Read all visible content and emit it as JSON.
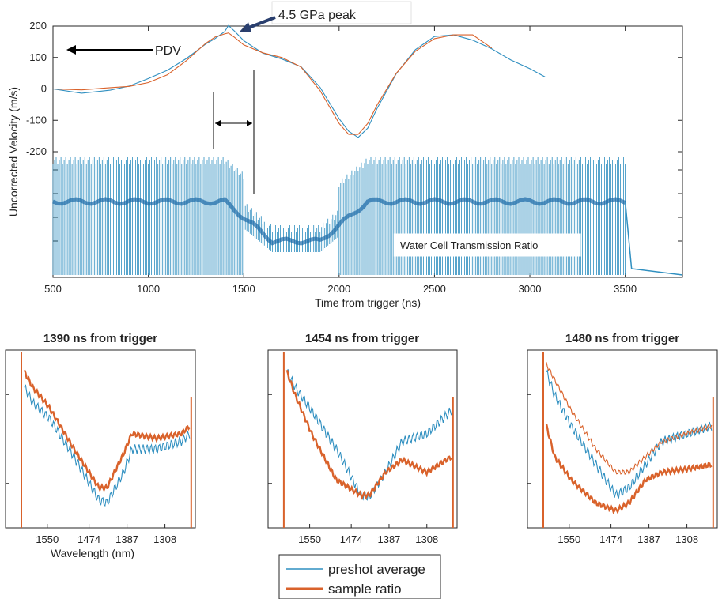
{
  "chart_data": [
    {
      "type": "line",
      "xlabel": "Time from trigger (ns)",
      "ylabel": "Uncorrected Velocity (m/s)",
      "xlim": [
        500,
        3800
      ],
      "xticks": [
        500,
        1000,
        1500,
        2000,
        2500,
        3000,
        3500
      ],
      "ylim": [
        -750,
        200
      ],
      "yticks": [
        200,
        100,
        0,
        -100,
        -200
      ],
      "grid": false,
      "annotations": {
        "peak": "4.5 GPa peak",
        "pdv": "PDV",
        "transmission": "Water Cell Transmission Ratio"
      },
      "series": [
        {
          "color": "#2f8fc0",
          "x": [
            500,
            650,
            800,
            900,
            1000,
            1100,
            1200,
            1300,
            1350,
            1400,
            1420,
            1450,
            1500,
            1600,
            1700,
            1800,
            1900,
            2000,
            2050,
            2100,
            2150,
            2200,
            2300,
            2400,
            2500,
            2600,
            2700,
            2800,
            2900,
            3000,
            3080
          ],
          "y": [
            0,
            -5,
            5,
            10,
            25,
            50,
            95,
            150,
            170,
            185,
            195,
            175,
            150,
            120,
            105,
            75,
            0,
            -105,
            -140,
            -150,
            -115,
            -55,
            45,
            115,
            160,
            175,
            165,
            135,
            90,
            55,
            30
          ]
        },
        {
          "color": "#d9622b",
          "x": [
            500,
            650,
            800,
            900,
            1000,
            1100,
            1200,
            1300,
            1350,
            1400,
            1420,
            1450,
            1500,
            1600,
            1700,
            1800,
            1900,
            2000,
            2050,
            2100,
            2150,
            2200,
            2300,
            2400,
            2500,
            2600,
            2700,
            2800
          ],
          "y": [
            0,
            -3,
            4,
            8,
            20,
            45,
            90,
            145,
            165,
            175,
            178,
            165,
            140,
            115,
            100,
            70,
            -5,
            -110,
            -145,
            -145,
            -110,
            -50,
            50,
            120,
            160,
            172,
            172,
            130
          ]
        }
      ]
    },
    {
      "type": "line",
      "title": "1390 ns from trigger",
      "xlabel": "Wavelength (nm)",
      "xticks": [
        "1550",
        "1474",
        "1387",
        "1308"
      ],
      "series": [
        {
          "name": "preshot average",
          "color": "#2f8fc0",
          "x": [
            0,
            0.05,
            0.15,
            0.3,
            0.45,
            0.5,
            0.6,
            0.65,
            0.8,
            0.95,
            1
          ],
          "y": [
            0.85,
            0.75,
            0.65,
            0.4,
            0.12,
            0.1,
            0.3,
            0.45,
            0.45,
            0.5,
            0.55
          ]
        },
        {
          "name": "sample ratio",
          "color": "#d9622b",
          "x": [
            0,
            0.05,
            0.15,
            0.3,
            0.45,
            0.5,
            0.6,
            0.65,
            0.8,
            0.95,
            1
          ],
          "y": [
            0.95,
            0.85,
            0.72,
            0.45,
            0.2,
            0.2,
            0.42,
            0.55,
            0.52,
            0.55,
            0.6
          ]
        }
      ]
    },
    {
      "type": "line",
      "title": "1454 ns from trigger",
      "xticks": [
        "1550",
        "1474",
        "1387",
        "1308"
      ],
      "series": [
        {
          "name": "preshot average",
          "color": "#2f8fc0",
          "x": [
            0,
            0.05,
            0.15,
            0.3,
            0.45,
            0.5,
            0.6,
            0.7,
            0.85,
            1
          ],
          "y": [
            0.95,
            0.85,
            0.7,
            0.45,
            0.15,
            0.14,
            0.3,
            0.5,
            0.55,
            0.7
          ]
        },
        {
          "name": "sample ratio",
          "color": "#d9622b",
          "x": [
            0,
            0.05,
            0.15,
            0.3,
            0.45,
            0.5,
            0.6,
            0.7,
            0.85,
            1
          ],
          "y": [
            0.95,
            0.8,
            0.55,
            0.25,
            0.15,
            0.15,
            0.3,
            0.38,
            0.3,
            0.4
          ]
        }
      ]
    },
    {
      "type": "line",
      "title": "1480 ns from trigger",
      "xticks": [
        "1550",
        "1474",
        "1387",
        "1308"
      ],
      "series": [
        {
          "name": "preshot average",
          "color": "#2f8fc0",
          "x": [
            0,
            0.05,
            0.15,
            0.3,
            0.42,
            0.5,
            0.6,
            0.7,
            0.85,
            1
          ],
          "y": [
            0.95,
            0.8,
            0.6,
            0.35,
            0.15,
            0.2,
            0.35,
            0.5,
            0.55,
            0.6
          ]
        },
        {
          "name": "sample ratio",
          "color": "#d9622b",
          "x": [
            0,
            0.05,
            0.15,
            0.3,
            0.42,
            0.5,
            0.6,
            0.7,
            0.85,
            1
          ],
          "y": [
            0.6,
            0.4,
            0.25,
            0.1,
            0.05,
            0.1,
            0.25,
            0.3,
            0.32,
            0.35
          ]
        },
        {
          "name": "sample ratio (thin)",
          "color": "#d9622b",
          "x": [
            0,
            0.05,
            0.15,
            0.3,
            0.42,
            0.5,
            0.6,
            0.7,
            0.85,
            1
          ],
          "y": [
            1.0,
            0.9,
            0.7,
            0.45,
            0.3,
            0.3,
            0.4,
            0.5,
            0.55,
            0.6
          ]
        }
      ]
    }
  ],
  "legend": {
    "items": [
      {
        "label": "preshot average",
        "color": "#2f8fc0"
      },
      {
        "label": "sample ratio",
        "color": "#d9622b"
      }
    ]
  }
}
